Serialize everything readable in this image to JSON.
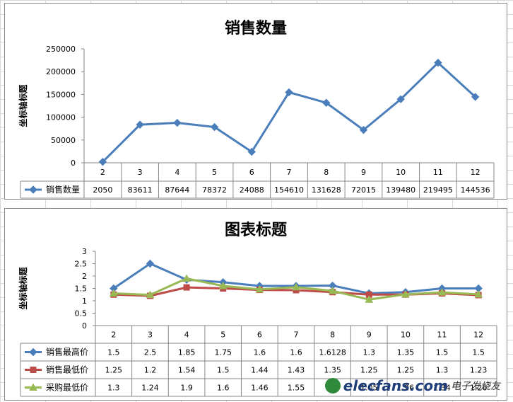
{
  "chart_data": [
    {
      "type": "line",
      "title": "销售数量",
      "ylabel": "坐标轴标题",
      "categories": [
        "2",
        "3",
        "4",
        "5",
        "6",
        "7",
        "8",
        "9",
        "10",
        "11",
        "12"
      ],
      "yticks": [
        "0",
        "50000",
        "100000",
        "150000",
        "200000",
        "250000"
      ],
      "ylim": [
        0,
        250000
      ],
      "series": [
        {
          "name": "销售数量",
          "values": [
            2050,
            83611,
            87644,
            78372,
            24088,
            154610,
            131628,
            72015,
            139480,
            219495,
            144536
          ],
          "labels": [
            "2050",
            "83611",
            "87644",
            "78372",
            "24088",
            "154610",
            "131628",
            "72015",
            "139480",
            "219495",
            "144536"
          ],
          "color": "#4a7ebb",
          "marker": "diamond"
        }
      ],
      "grid": false,
      "legend": "data-table"
    },
    {
      "type": "line",
      "title": "图表标题",
      "ylabel": "坐标轴标题",
      "categories": [
        "2",
        "3",
        "4",
        "5",
        "6",
        "7",
        "8",
        "9",
        "10",
        "11",
        "12"
      ],
      "yticks": [
        "0",
        "0.5",
        "1",
        "1.5",
        "2",
        "2.5",
        "3"
      ],
      "ylim": [
        0,
        3
      ],
      "series": [
        {
          "name": "销售最高价",
          "values": [
            1.5,
            2.5,
            1.85,
            1.75,
            1.6,
            1.6,
            1.6128,
            1.3,
            1.35,
            1.5,
            1.5
          ],
          "labels": [
            "1.5",
            "2.5",
            "1.85",
            "1.75",
            "1.6",
            "1.6",
            "1.6128",
            "1.3",
            "1.35",
            "1.5",
            "1.5"
          ],
          "color": "#4a7ebb",
          "marker": "diamond"
        },
        {
          "name": "销售最低价",
          "values": [
            1.25,
            1.2,
            1.54,
            1.5,
            1.44,
            1.43,
            1.35,
            1.25,
            1.25,
            1.3,
            1.23
          ],
          "labels": [
            "1.25",
            "1.2",
            "1.54",
            "1.5",
            "1.44",
            "1.43",
            "1.35",
            "1.25",
            "1.25",
            "1.3",
            "1.23"
          ],
          "color": "#be4b48",
          "marker": "square"
        },
        {
          "name": "采购最低价",
          "values": [
            1.3,
            1.24,
            1.9,
            1.6,
            1.46,
            1.55,
            1.4,
            1.05,
            1.26,
            1.34,
            1.26
          ],
          "labels": [
            "1.3",
            "1.24",
            "1.9",
            "1.6",
            "1.46",
            "1.55",
            "1.4",
            "1.05",
            "1.26",
            "1.34",
            "1.26"
          ],
          "color": "#98b954",
          "marker": "triangle"
        }
      ],
      "grid": false,
      "legend": "data-table"
    }
  ],
  "watermark": {
    "text": "elecfans.com",
    "cn": "电子发烧友"
  }
}
